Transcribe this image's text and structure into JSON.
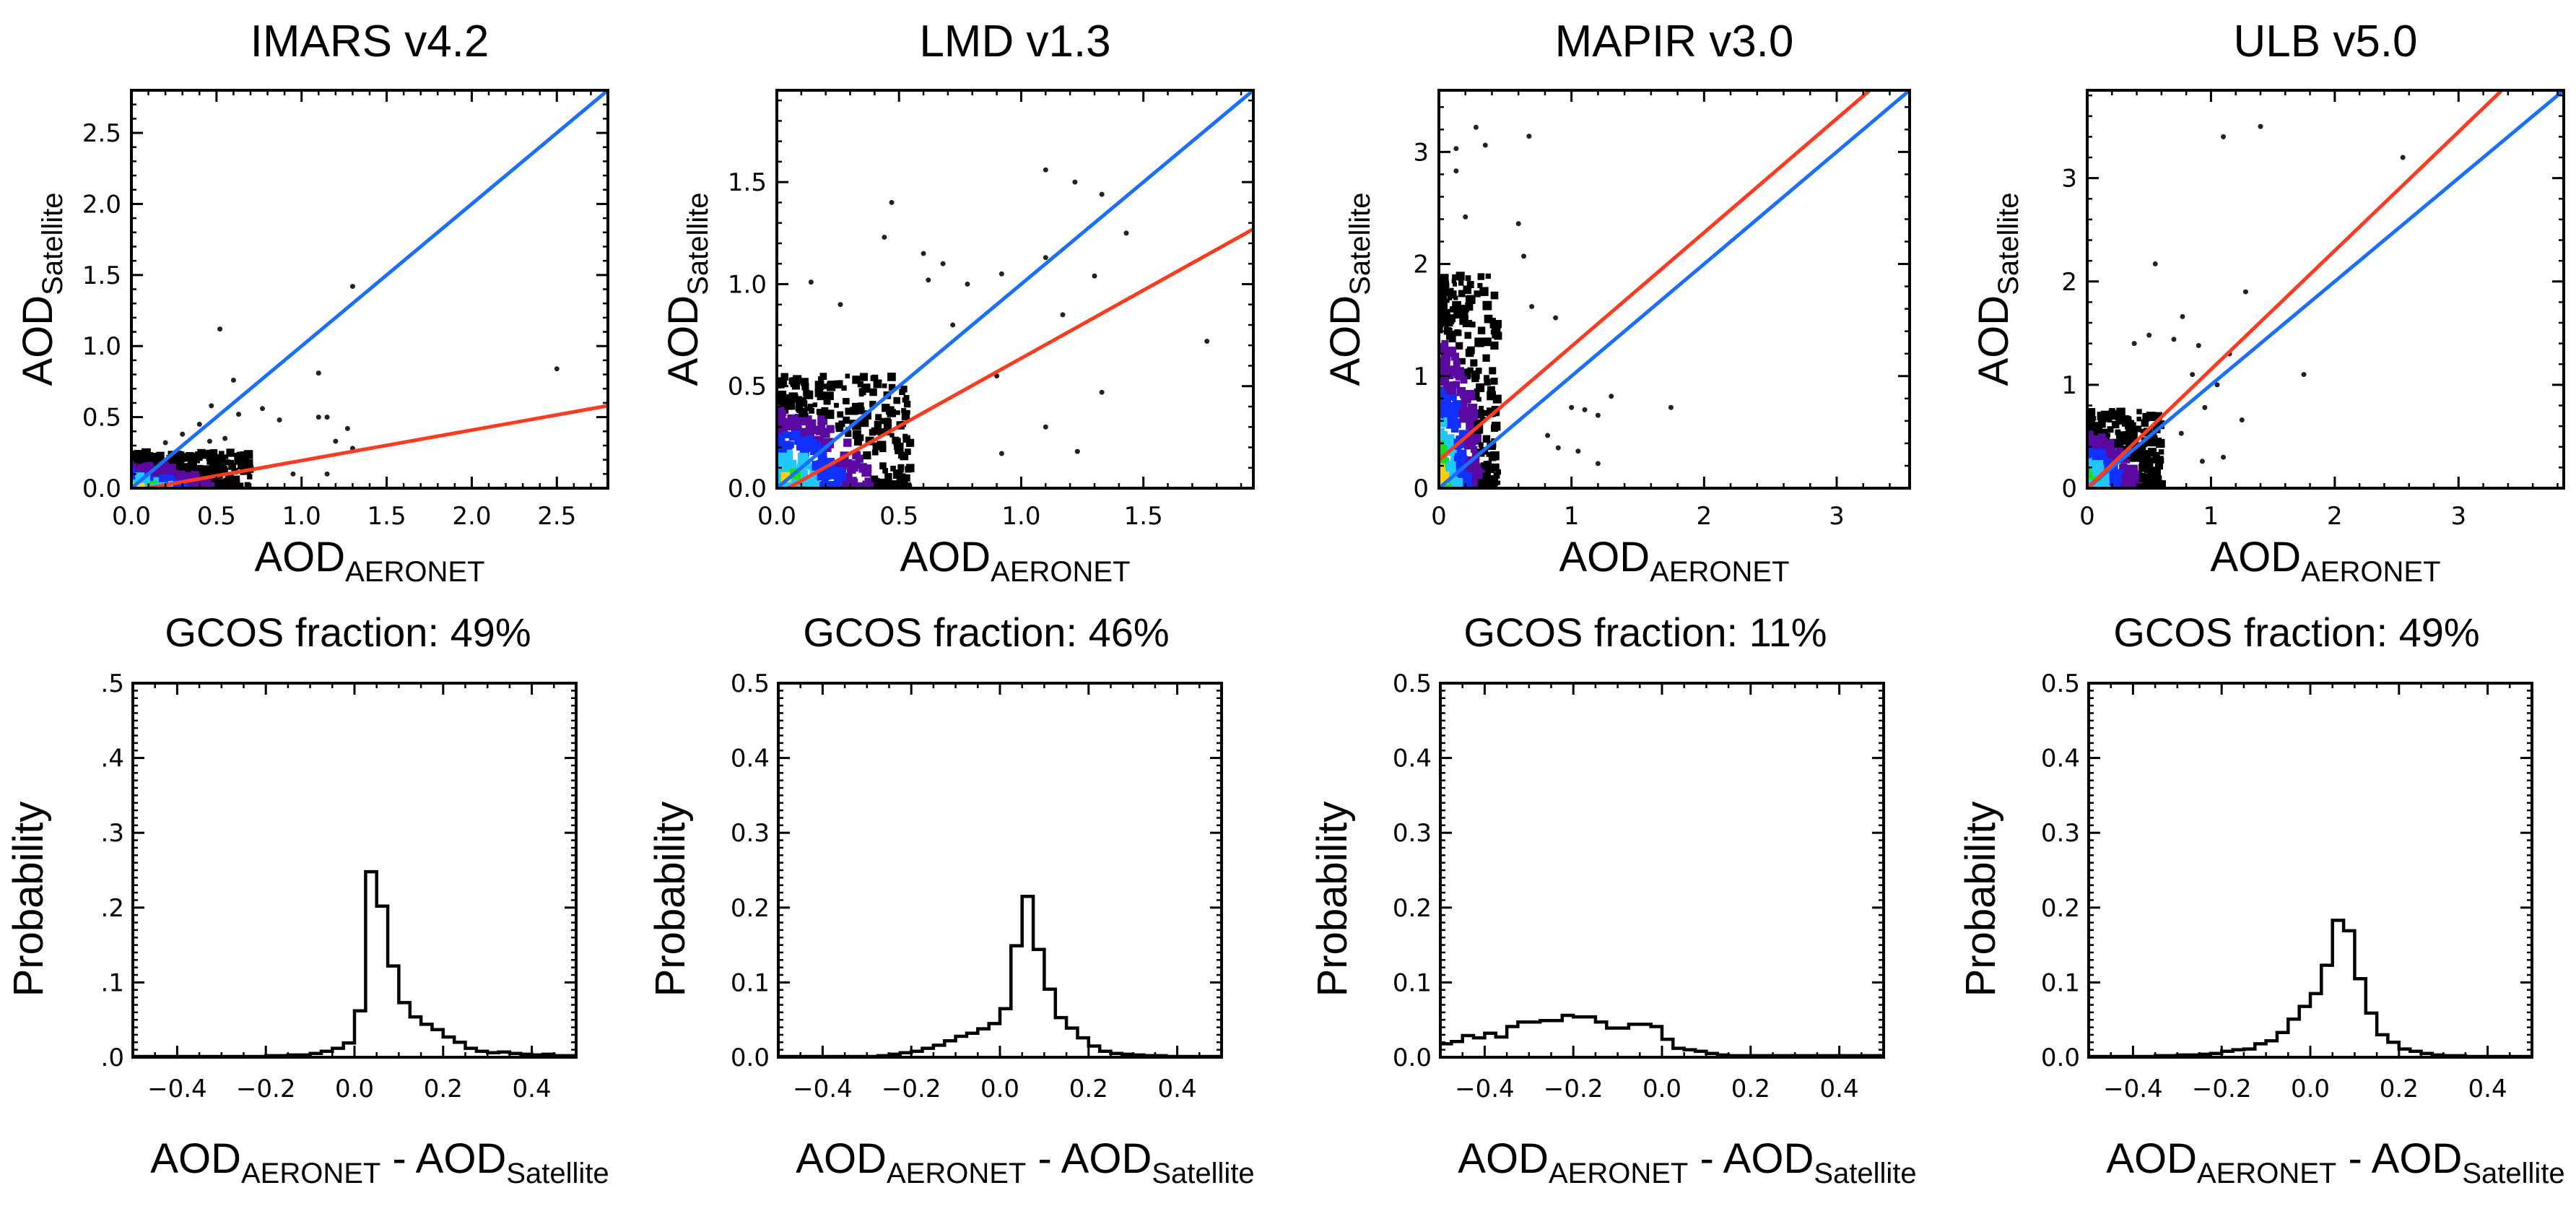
{
  "figure": {
    "colors": {
      "one_to_one_line": "#1a6fff",
      "fit_line": "#ff3b1f",
      "axes": "#000000",
      "density_scale": [
        "#000000",
        "#5a0aa0",
        "#1030ff",
        "#20c8ff",
        "#12e012",
        "#ffd000",
        "#ff5a10"
      ]
    }
  },
  "chart_data": [
    {
      "type": "scatter",
      "panel": "IMARS v4.2",
      "title": "IMARS v4.2",
      "xlabel": "AOD",
      "xlabel_sub": "AERONET",
      "ylabel": "AOD",
      "ylabel_sub": "Satellite",
      "xlim": [
        0,
        2.8
      ],
      "ylim": [
        0,
        2.8
      ],
      "xticks": [
        0.0,
        0.5,
        1.0,
        1.5,
        2.0,
        2.5
      ],
      "yticks": [
        0.0,
        0.5,
        1.0,
        1.5,
        2.0,
        2.5
      ],
      "tick_labels_x": [
        "0.0",
        "0.5",
        "1.0",
        "1.5",
        "2.0",
        "2.5"
      ],
      "tick_labels_y": [
        "0.0",
        "0.5",
        "1.0",
        "1.5",
        "2.0",
        "2.5"
      ],
      "one_to_one": [
        [
          0,
          0
        ],
        [
          2.8,
          2.8
        ]
      ],
      "fit_line": [
        [
          0,
          -0.02
        ],
        [
          2.8,
          0.58
        ]
      ],
      "dense_core": {
        "x_max": 0.7,
        "y_max": 0.25
      },
      "outliers": [
        [
          0.52,
          1.12
        ],
        [
          1.3,
          1.42
        ],
        [
          0.6,
          0.76
        ],
        [
          1.1,
          0.81
        ],
        [
          2.5,
          0.84
        ],
        [
          0.47,
          0.58
        ],
        [
          0.77,
          0.56
        ],
        [
          1.1,
          0.5
        ],
        [
          1.15,
          0.5
        ],
        [
          0.87,
          0.48
        ],
        [
          1.27,
          0.42
        ],
        [
          0.63,
          0.52
        ],
        [
          0.3,
          0.38
        ],
        [
          0.46,
          0.33
        ],
        [
          1.2,
          0.33
        ],
        [
          1.3,
          0.28
        ],
        [
          0.55,
          0.35
        ],
        [
          0.95,
          0.1
        ],
        [
          1.15,
          0.1
        ],
        [
          0.4,
          0.45
        ],
        [
          0.2,
          0.32
        ]
      ],
      "gcos_fraction_label": "GCOS fraction: 49%",
      "gcos_fraction": 49
    },
    {
      "type": "scatter",
      "panel": "LMD v1.3",
      "title": "LMD v1.3",
      "xlabel": "AOD",
      "xlabel_sub": "AERONET",
      "ylabel": "AOD",
      "ylabel_sub": "Satellite",
      "xlim": [
        0,
        1.95
      ],
      "ylim": [
        0,
        1.95
      ],
      "xticks": [
        0.0,
        0.5,
        1.0,
        1.5
      ],
      "yticks": [
        0.0,
        0.5,
        1.0,
        1.5
      ],
      "tick_labels_x": [
        "0.0",
        "0.5",
        "1.0",
        "1.5"
      ],
      "tick_labels_y": [
        "0.0",
        "0.5",
        "1.0",
        "1.5"
      ],
      "one_to_one": [
        [
          0,
          0
        ],
        [
          1.95,
          1.95
        ]
      ],
      "fit_line": [
        [
          0,
          -0.03
        ],
        [
          1.95,
          1.27
        ]
      ],
      "dense_core": {
        "x_max": 0.55,
        "y_max": 0.55
      },
      "outliers": [
        [
          1.1,
          1.56
        ],
        [
          1.22,
          1.5
        ],
        [
          1.33,
          1.44
        ],
        [
          0.47,
          1.4
        ],
        [
          0.44,
          1.23
        ],
        [
          1.43,
          1.25
        ],
        [
          0.6,
          1.15
        ],
        [
          0.68,
          1.1
        ],
        [
          1.1,
          1.13
        ],
        [
          0.62,
          1.02
        ],
        [
          0.92,
          1.05
        ],
        [
          1.3,
          1.04
        ],
        [
          0.78,
          1.0
        ],
        [
          0.14,
          1.01
        ],
        [
          1.76,
          0.72
        ],
        [
          1.17,
          0.85
        ],
        [
          1.33,
          0.47
        ],
        [
          0.9,
          0.55
        ],
        [
          1.1,
          0.3
        ],
        [
          1.23,
          0.18
        ],
        [
          0.92,
          0.17
        ],
        [
          0.72,
          0.8
        ],
        [
          0.26,
          0.9
        ]
      ],
      "gcos_fraction_label": "GCOS fraction: 46%",
      "gcos_fraction": 46
    },
    {
      "type": "scatter",
      "panel": "MAPIR v3.0",
      "title": "MAPIR v3.0",
      "xlabel": "AOD",
      "xlabel_sub": "AERONET",
      "ylabel": "AOD",
      "ylabel_sub": "Satellite",
      "xlim": [
        0,
        3.55
      ],
      "ylim": [
        0,
        3.55
      ],
      "xticks": [
        0,
        1,
        2,
        3
      ],
      "yticks": [
        0,
        1,
        2,
        3
      ],
      "tick_labels_x": [
        "0",
        "1",
        "2",
        "3"
      ],
      "tick_labels_y": [
        "0",
        "1",
        "2",
        "3"
      ],
      "one_to_one": [
        [
          0,
          0
        ],
        [
          3.55,
          3.55
        ]
      ],
      "fit_line": [
        [
          0,
          0.25
        ],
        [
          3.25,
          3.55
        ]
      ],
      "dense_core": {
        "x_max": 0.45,
        "y_max": 1.9
      },
      "outliers": [
        [
          0.28,
          3.22
        ],
        [
          0.68,
          3.14
        ],
        [
          0.35,
          3.06
        ],
        [
          0.13,
          3.03
        ],
        [
          0.13,
          2.83
        ],
        [
          0.2,
          2.42
        ],
        [
          0.6,
          2.36
        ],
        [
          0.64,
          2.07
        ],
        [
          0.7,
          1.62
        ],
        [
          0.88,
          1.52
        ],
        [
          1.3,
          0.82
        ],
        [
          1.75,
          0.72
        ],
        [
          1.0,
          0.72
        ],
        [
          1.1,
          0.7
        ],
        [
          1.2,
          0.65
        ],
        [
          1.05,
          0.33
        ],
        [
          1.2,
          0.22
        ],
        [
          0.82,
          0.47
        ],
        [
          0.9,
          0.36
        ]
      ],
      "gcos_fraction_label": "GCOS fraction: 11%",
      "gcos_fraction": 11
    },
    {
      "type": "scatter",
      "panel": "ULB v5.0",
      "title": "ULB v5.0",
      "xlabel": "AOD",
      "xlabel_sub": "AERONET",
      "ylabel": "AOD",
      "ylabel_sub": "Satellite",
      "xlim": [
        0,
        3.85
      ],
      "ylim": [
        0,
        3.85
      ],
      "xticks": [
        0,
        1,
        2,
        3
      ],
      "yticks": [
        0,
        1,
        2,
        3
      ],
      "tick_labels_x": [
        "0",
        "1",
        "2",
        "3"
      ],
      "tick_labels_y": [
        "0",
        "1",
        "2",
        "3"
      ],
      "one_to_one": [
        [
          0,
          0
        ],
        [
          3.85,
          3.85
        ]
      ],
      "fit_line": [
        [
          0,
          0.0
        ],
        [
          3.35,
          3.85
        ]
      ],
      "dense_core": {
        "x_max": 0.6,
        "y_max": 0.75
      },
      "outliers": [
        [
          1.1,
          3.4
        ],
        [
          1.4,
          3.5
        ],
        [
          2.55,
          3.2
        ],
        [
          0.55,
          2.17
        ],
        [
          1.28,
          1.9
        ],
        [
          0.77,
          1.66
        ],
        [
          0.5,
          1.48
        ],
        [
          0.7,
          1.44
        ],
        [
          0.38,
          1.4
        ],
        [
          0.9,
          1.38
        ],
        [
          1.15,
          1.3
        ],
        [
          1.75,
          1.1
        ],
        [
          0.85,
          1.1
        ],
        [
          1.05,
          1.0
        ],
        [
          0.95,
          0.78
        ],
        [
          1.25,
          0.66
        ],
        [
          1.1,
          0.3
        ],
        [
          0.93,
          0.26
        ],
        [
          0.76,
          0.53
        ]
      ],
      "gcos_fraction_label": "GCOS fraction: 49%",
      "gcos_fraction": 49
    },
    {
      "type": "histogram",
      "panel": "IMARS v4.2",
      "xlabel": "AOD",
      "xlabel_sub1": "AERONET",
      "xlabel_mid": " - AOD",
      "xlabel_sub2": "Satellite",
      "ylabel": "Probability",
      "xlim": [
        -0.5,
        0.5
      ],
      "ylim": [
        0,
        0.5
      ],
      "xticks": [
        -0.4,
        -0.2,
        0.0,
        0.2,
        0.4
      ],
      "tick_labels_x": [
        "−0.4",
        "−0.2",
        "0.0",
        "0.2",
        "0.4"
      ],
      "yticks": [
        0.0,
        0.1,
        0.2,
        0.3,
        0.4,
        0.5
      ],
      "tick_labels_y": [
        ".0",
        ".1",
        ".2",
        ".3",
        ".4",
        ".5"
      ],
      "bin_width": 0.025,
      "bin_start": -0.5,
      "values": [
        0.001,
        0.001,
        0.001,
        0.001,
        0.001,
        0.001,
        0.001,
        0.001,
        0.001,
        0.001,
        0.001,
        0.001,
        0.002,
        0.002,
        0.003,
        0.003,
        0.005,
        0.008,
        0.012,
        0.019,
        0.062,
        0.248,
        0.202,
        0.122,
        0.073,
        0.054,
        0.044,
        0.037,
        0.027,
        0.02,
        0.012,
        0.008,
        0.006,
        0.007,
        0.005,
        0.004,
        0.003,
        0.004,
        0.002,
        0.002
      ]
    },
    {
      "type": "histogram",
      "panel": "LMD v1.3",
      "xlabel": "AOD",
      "xlabel_sub1": "AERONET",
      "xlabel_mid": " - AOD",
      "xlabel_sub2": "Satellite",
      "ylabel": "Probability",
      "xlim": [
        -0.5,
        0.5
      ],
      "ylim": [
        0,
        0.5
      ],
      "xticks": [
        -0.4,
        -0.2,
        0.0,
        0.2,
        0.4
      ],
      "tick_labels_x": [
        "−0.4",
        "−0.2",
        "0.0",
        "0.2",
        "0.4"
      ],
      "yticks": [
        0.0,
        0.1,
        0.2,
        0.3,
        0.4,
        0.5
      ],
      "tick_labels_y": [
        "0.0",
        "0.1",
        "0.2",
        "0.3",
        "0.4",
        "0.5"
      ],
      "bin_width": 0.025,
      "bin_start": -0.5,
      "values": [
        0.001,
        0.001,
        0.001,
        0.001,
        0.001,
        0.001,
        0.001,
        0.001,
        0.001,
        0.002,
        0.004,
        0.006,
        0.008,
        0.012,
        0.016,
        0.022,
        0.028,
        0.032,
        0.038,
        0.045,
        0.065,
        0.149,
        0.215,
        0.144,
        0.091,
        0.053,
        0.039,
        0.026,
        0.015,
        0.008,
        0.005,
        0.004,
        0.003,
        0.002,
        0.002,
        0.001,
        0.001,
        0.001,
        0.001,
        0.001
      ]
    },
    {
      "type": "histogram",
      "panel": "MAPIR v3.0",
      "xlabel": "AOD",
      "xlabel_sub1": "AERONET",
      "xlabel_mid": " - AOD",
      "xlabel_sub2": "Satellite",
      "ylabel": "Probability",
      "xlim": [
        -0.5,
        0.5
      ],
      "ylim": [
        0,
        0.5
      ],
      "xticks": [
        -0.4,
        -0.2,
        0.0,
        0.2,
        0.4
      ],
      "tick_labels_x": [
        "−0.4",
        "−0.2",
        "0.0",
        "0.2",
        "0.4"
      ],
      "yticks": [
        0.0,
        0.1,
        0.2,
        0.3,
        0.4,
        0.5
      ],
      "tick_labels_y": [
        "0.0",
        "0.1",
        "0.2",
        "0.3",
        "0.4",
        "0.5"
      ],
      "bin_width": 0.025,
      "bin_start": -0.5,
      "values": [
        0.018,
        0.021,
        0.029,
        0.026,
        0.032,
        0.027,
        0.041,
        0.047,
        0.047,
        0.049,
        0.049,
        0.056,
        0.054,
        0.054,
        0.047,
        0.039,
        0.039,
        0.044,
        0.044,
        0.041,
        0.024,
        0.012,
        0.01,
        0.008,
        0.005,
        0.003,
        0.002,
        0.002,
        0.002,
        0.002,
        0.002,
        0.002,
        0.002,
        0.002,
        0.002,
        0.002,
        0.002,
        0.002,
        0.002,
        0.002
      ]
    },
    {
      "type": "histogram",
      "panel": "ULB v5.0",
      "xlabel": "AOD",
      "xlabel_sub1": "AERONET",
      "xlabel_mid": " - AOD",
      "xlabel_sub2": "Satellite",
      "ylabel": "Probability",
      "xlim": [
        -0.5,
        0.5
      ],
      "ylim": [
        0,
        0.5
      ],
      "xticks": [
        -0.4,
        -0.2,
        0.0,
        0.2,
        0.4
      ],
      "tick_labels_x": [
        "−0.4",
        "−0.2",
        "0.0",
        "0.2",
        "0.4"
      ],
      "yticks": [
        0.0,
        0.1,
        0.2,
        0.3,
        0.4,
        0.5
      ],
      "tick_labels_y": [
        "0.0",
        "0.1",
        "0.2",
        "0.3",
        "0.4",
        "0.5"
      ],
      "bin_width": 0.025,
      "bin_start": -0.5,
      "values": [
        0.001,
        0.001,
        0.001,
        0.001,
        0.001,
        0.001,
        0.002,
        0.002,
        0.003,
        0.003,
        0.004,
        0.005,
        0.008,
        0.01,
        0.011,
        0.018,
        0.022,
        0.033,
        0.051,
        0.068,
        0.085,
        0.123,
        0.183,
        0.169,
        0.105,
        0.059,
        0.03,
        0.02,
        0.011,
        0.008,
        0.005,
        0.003,
        0.002,
        0.002,
        0.001,
        0.001,
        0.001,
        0.001,
        0.001,
        0.001
      ]
    }
  ]
}
